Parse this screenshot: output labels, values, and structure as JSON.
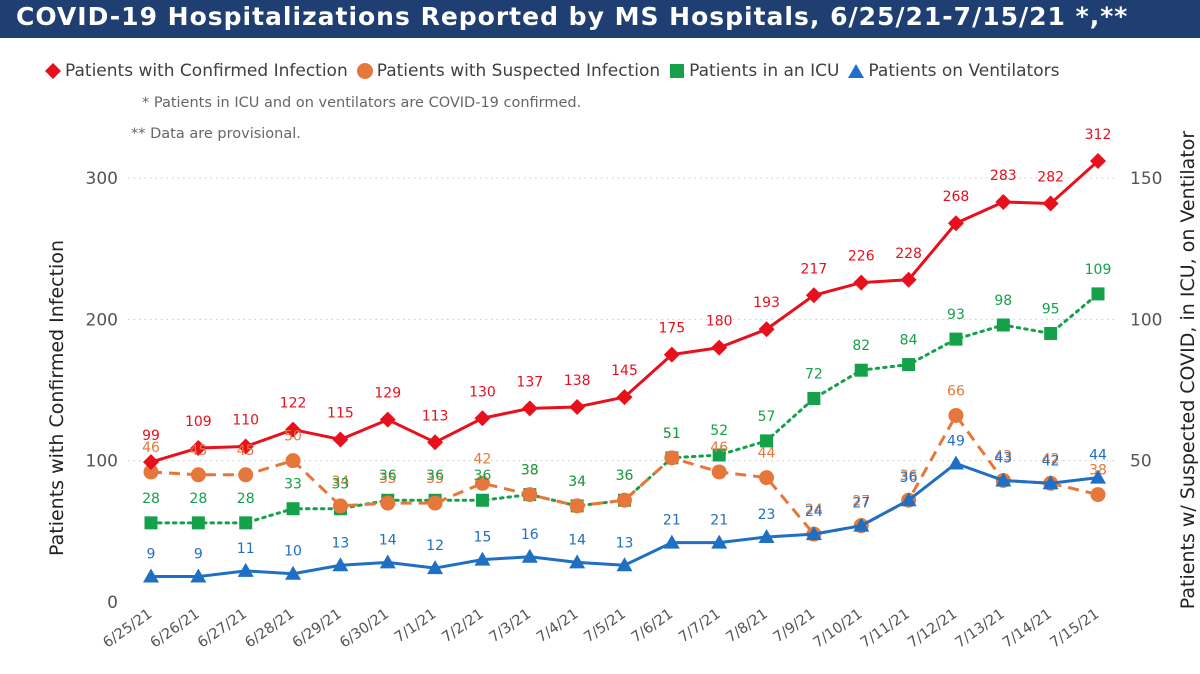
{
  "title": "COVID-19 Hospitalizations Reported by MS Hospitals, 6/25/21-7/15/21 *,**",
  "notes": [
    "* Patients in ICU and on ventilators are COVID-19 confirmed.",
    "** Data are provisional."
  ],
  "chart_data": {
    "type": "line",
    "categories": [
      "6/25/21",
      "6/26/21",
      "6/27/21",
      "6/28/21",
      "6/29/21",
      "6/30/21",
      "7/1/21",
      "7/2/21",
      "7/3/21",
      "7/4/21",
      "7/5/21",
      "7/6/21",
      "7/7/21",
      "7/8/21",
      "7/9/21",
      "7/10/21",
      "7/11/21",
      "7/12/21",
      "7/13/21",
      "7/14/21",
      "7/15/21"
    ],
    "y_left": {
      "label": "Patients with Confirmed Infection",
      "ticks": [
        0,
        100,
        200,
        300
      ],
      "range": [
        0,
        330
      ]
    },
    "y_right": {
      "label": "Patients w/ Suspected COVID, in ICU, on Ventilator",
      "ticks": [
        50,
        100,
        150
      ],
      "range": [
        0,
        165
      ]
    },
    "legend_position": "top",
    "grid": true,
    "series": [
      {
        "name": "Patients with Confirmed Infection",
        "axis": "left",
        "color": "#e8101c",
        "marker": "diamond",
        "line": "solid",
        "values": [
          99,
          109,
          110,
          122,
          115,
          129,
          113,
          130,
          137,
          138,
          145,
          175,
          180,
          193,
          217,
          226,
          228,
          268,
          283,
          282,
          312
        ]
      },
      {
        "name": "Patients with Suspected Infection",
        "axis": "right",
        "color": "#e6773a",
        "marker": "circle",
        "line": "dashed",
        "values": [
          46,
          45,
          45,
          50,
          34,
          35,
          35,
          42,
          38,
          34,
          36,
          51,
          46,
          44,
          24,
          27,
          36,
          66,
          43,
          42,
          38
        ]
      },
      {
        "name": "Patients in an ICU",
        "axis": "right",
        "color": "#15a14a",
        "marker": "square",
        "line": "dotted",
        "values": [
          28,
          28,
          28,
          33,
          33,
          36,
          36,
          36,
          38,
          34,
          36,
          51,
          52,
          57,
          72,
          82,
          84,
          93,
          98,
          95,
          109
        ]
      },
      {
        "name": "Patients on Ventilators",
        "axis": "right",
        "color": "#1f6fc5",
        "marker": "triangle",
        "line": "solid",
        "values": [
          9,
          9,
          11,
          10,
          13,
          14,
          12,
          15,
          16,
          14,
          13,
          21,
          21,
          23,
          24,
          27,
          36,
          49,
          43,
          42,
          44
        ]
      }
    ]
  }
}
